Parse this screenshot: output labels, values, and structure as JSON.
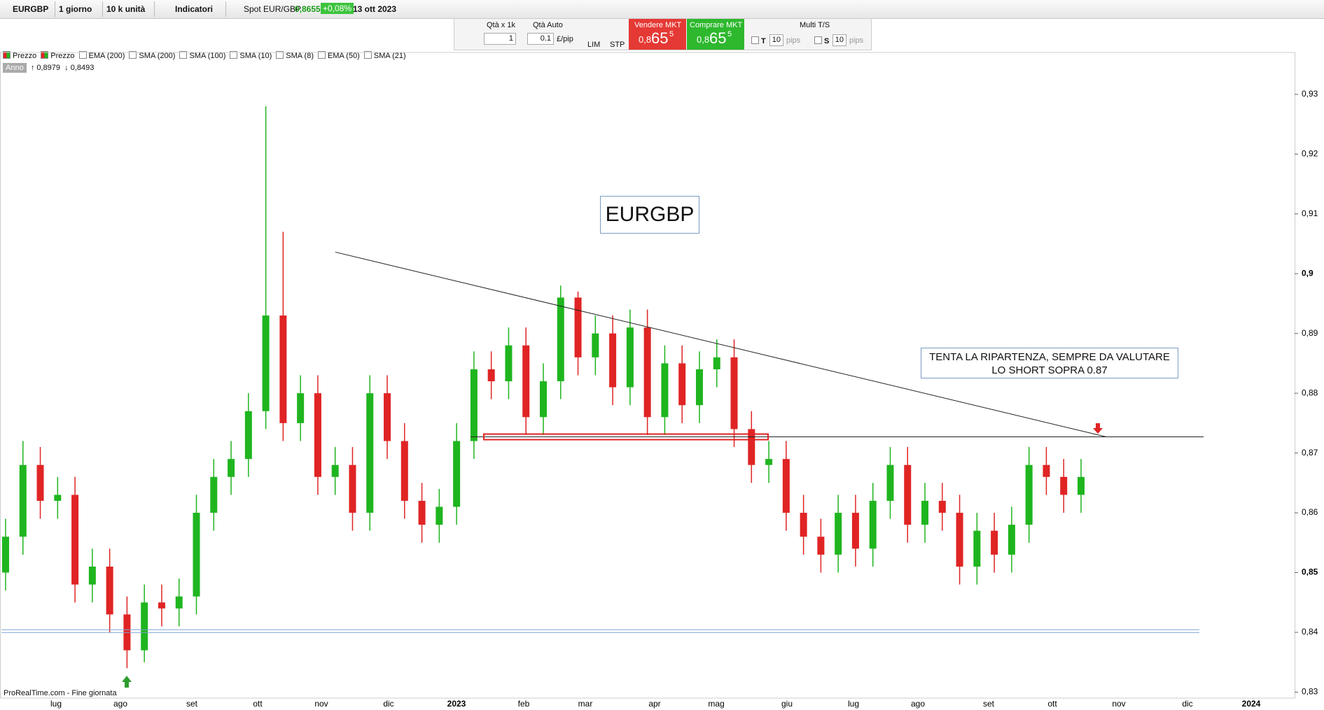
{
  "ui": {
    "toolbar": {
      "symbol": "EURGBP",
      "period": "1 giorno",
      "units": "10 k unità",
      "indicators": "Indicatori",
      "instrument": "Spot EUR/GBP",
      "price": "0,8655",
      "change": "+0,08%",
      "date": "13 ott 2023"
    },
    "order": {
      "qty_label": "Qtà  x 1k",
      "qty": "1",
      "auto": "Qtà Auto",
      "pip": "0.1",
      "pip_unit": "£/pip",
      "lim": "LIM",
      "stp": "STP",
      "sell_label": "Vendere MKT",
      "sell_a": "0,8",
      "sell_b": "65",
      "sell_c": "5",
      "buy_label": "Comprare MKT",
      "buy_a": "0,8",
      "buy_b": "65",
      "buy_c": "5",
      "multi": "Multi T/S",
      "t": "T",
      "t_val": "10",
      "t_unit": "pips",
      "s": "S",
      "s_val": "10",
      "s_unit": "pips"
    },
    "indicators": [
      "Prezzo",
      "Prezzo",
      "EMA (200)",
      "SMA (200)",
      "SMA (100)",
      "SMA (10)",
      "SMA (8)",
      "EMA (50)",
      "SMA (21)"
    ],
    "range": {
      "label": "Anno",
      "high": "0,8979",
      "low": "0,8493"
    },
    "footer": "ProRealTime.com - Fine giornata"
  },
  "chart_data": {
    "type": "candlestick",
    "title": "EURGBP",
    "annotation": "TENTA LA RIPARTENZA, SEMPRE DA VALUTARE LO SHORT SOPRA 0.87",
    "up_color": "#1fb51f",
    "down_color": "#e02424",
    "x_labels": [
      "lug",
      "ago",
      "set",
      "ott",
      "nov",
      "dic",
      "2023",
      "feb",
      "mar",
      "apr",
      "mag",
      "giu",
      "lug",
      "ago",
      "set",
      "ott",
      "nov",
      "dic",
      "2024"
    ],
    "open": [
      0.85,
      0.856,
      0.868,
      0.862,
      0.863,
      0.848,
      0.851,
      0.843,
      0.837,
      0.845,
      0.844,
      0.846,
      0.86,
      0.866,
      0.869,
      0.877,
      0.893,
      0.875,
      0.88,
      0.866,
      0.868,
      0.86,
      0.88,
      0.872,
      0.862,
      0.858,
      0.861,
      0.872,
      0.884,
      0.882,
      0.888,
      0.876,
      0.882,
      0.896,
      0.886,
      0.89,
      0.881,
      0.891,
      0.876,
      0.885,
      0.878,
      0.884,
      0.886,
      0.874,
      0.868,
      0.869,
      0.86,
      0.856,
      0.853,
      0.86,
      0.854,
      0.862,
      0.868,
      0.858,
      0.862,
      0.86,
      0.851,
      0.857,
      0.853,
      0.858,
      0.868,
      0.866,
      0.863
    ],
    "high": [
      0.859,
      0.872,
      0.871,
      0.866,
      0.866,
      0.854,
      0.854,
      0.846,
      0.848,
      0.848,
      0.849,
      0.863,
      0.869,
      0.872,
      0.88,
      0.928,
      0.907,
      0.883,
      0.883,
      0.871,
      0.871,
      0.883,
      0.883,
      0.875,
      0.865,
      0.864,
      0.875,
      0.887,
      0.887,
      0.891,
      0.891,
      0.885,
      0.898,
      0.897,
      0.893,
      0.893,
      0.894,
      0.894,
      0.888,
      0.888,
      0.887,
      0.889,
      0.889,
      0.877,
      0.872,
      0.872,
      0.863,
      0.859,
      0.863,
      0.863,
      0.865,
      0.871,
      0.871,
      0.865,
      0.865,
      0.863,
      0.86,
      0.86,
      0.861,
      0.871,
      0.871,
      0.869,
      0.869
    ],
    "low": [
      0.847,
      0.853,
      0.859,
      0.859,
      0.845,
      0.845,
      0.84,
      0.834,
      0.835,
      0.841,
      0.841,
      0.843,
      0.857,
      0.863,
      0.866,
      0.874,
      0.872,
      0.872,
      0.863,
      0.863,
      0.857,
      0.857,
      0.869,
      0.859,
      0.855,
      0.855,
      0.858,
      0.869,
      0.879,
      0.879,
      0.873,
      0.873,
      0.879,
      0.883,
      0.883,
      0.878,
      0.878,
      0.873,
      0.873,
      0.875,
      0.875,
      0.881,
      0.871,
      0.865,
      0.865,
      0.857,
      0.853,
      0.85,
      0.85,
      0.851,
      0.851,
      0.859,
      0.855,
      0.855,
      0.857,
      0.848,
      0.848,
      0.85,
      0.85,
      0.855,
      0.863,
      0.86,
      0.86
    ],
    "close": [
      0.856,
      0.868,
      0.862,
      0.863,
      0.848,
      0.851,
      0.843,
      0.837,
      0.845,
      0.844,
      0.846,
      0.86,
      0.866,
      0.869,
      0.877,
      0.893,
      0.875,
      0.88,
      0.866,
      0.868,
      0.86,
      0.88,
      0.872,
      0.862,
      0.858,
      0.861,
      0.872,
      0.884,
      0.882,
      0.888,
      0.876,
      0.882,
      0.896,
      0.886,
      0.89,
      0.881,
      0.891,
      0.876,
      0.885,
      0.878,
      0.884,
      0.886,
      0.874,
      0.868,
      0.869,
      0.86,
      0.856,
      0.853,
      0.86,
      0.854,
      0.862,
      0.868,
      0.858,
      0.862,
      0.86,
      0.851,
      0.857,
      0.853,
      0.858,
      0.868,
      0.866,
      0.863,
      0.866
    ],
    "trendline": [
      0.9036,
      0.8727
    ],
    "resistance": 0.8727,
    "support": 0.8402,
    "ylim": [
      0.829,
      0.937
    ],
    "yticks": [
      {
        "value": 0.83,
        "label": "0,83"
      },
      {
        "value": 0.84,
        "label": "0,84"
      },
      {
        "value": 0.85,
        "label": "0,85"
      },
      {
        "value": 0.86,
        "label": "0,86"
      },
      {
        "value": 0.87,
        "label": "0,87"
      },
      {
        "value": 0.88,
        "label": "0,88"
      },
      {
        "value": 0.89,
        "label": "0,89"
      },
      {
        "value": 0.9,
        "label": "0,9"
      },
      {
        "value": 0.91,
        "label": "0,91"
      },
      {
        "value": 0.92,
        "label": "0,92"
      },
      {
        "value": 0.93,
        "label": "0,93"
      }
    ]
  }
}
